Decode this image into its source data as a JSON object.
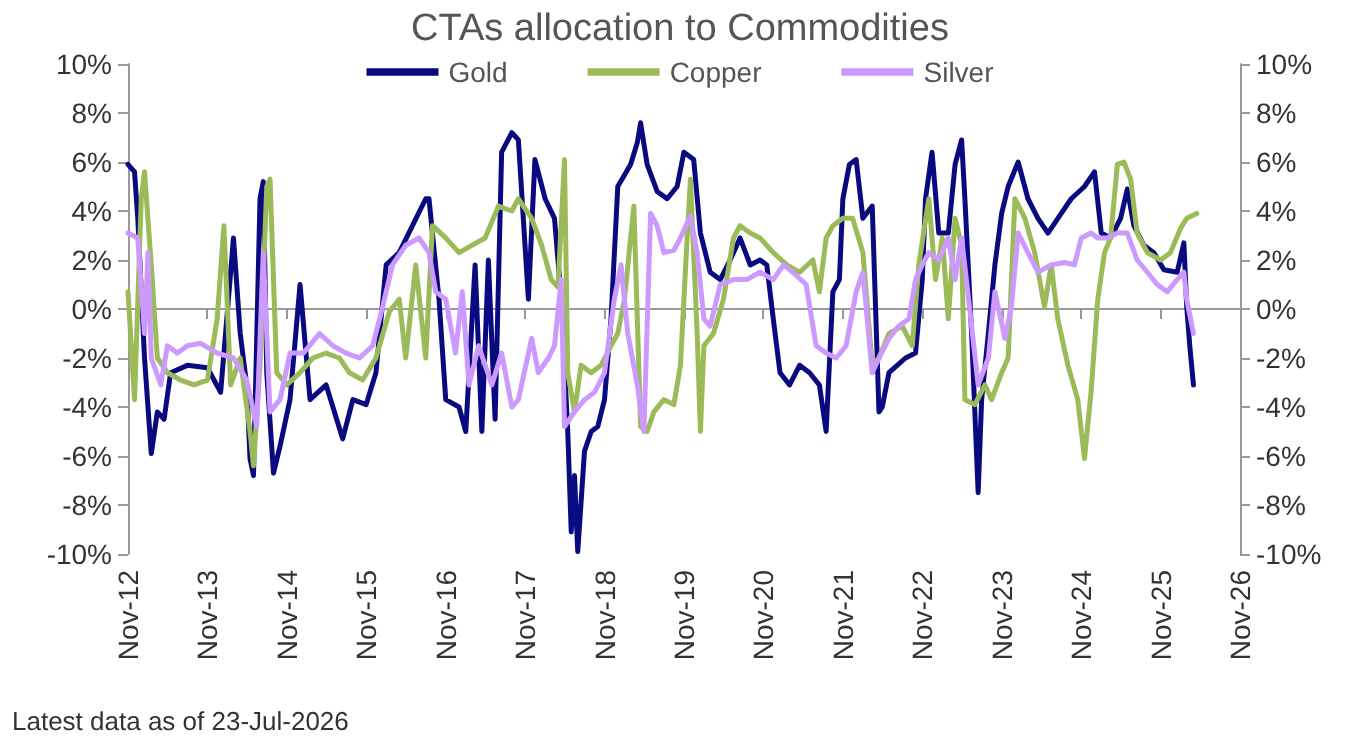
{
  "chart_data": {
    "type": "line",
    "title": "CTAs allocation to Commodities",
    "annotations": [
      "Latest data as of 23-Jul-2026"
    ],
    "xlim": [
      "2012-11",
      "2026-11"
    ],
    "xticks": [
      {
        "value": "2012-11",
        "label": "Nov-12"
      },
      {
        "value": "2013-11",
        "label": "Nov-13"
      },
      {
        "value": "2014-11",
        "label": "Nov-14"
      },
      {
        "value": "2015-11",
        "label": "Nov-15"
      },
      {
        "value": "2016-11",
        "label": "Nov-16"
      },
      {
        "value": "2017-11",
        "label": "Nov-17"
      },
      {
        "value": "2018-11",
        "label": "Nov-18"
      },
      {
        "value": "2019-11",
        "label": "Nov-19"
      },
      {
        "value": "2020-11",
        "label": "Nov-20"
      },
      {
        "value": "2021-11",
        "label": "Nov-21"
      },
      {
        "value": "2022-11",
        "label": "Nov-22"
      },
      {
        "value": "2023-11",
        "label": "Nov-23"
      },
      {
        "value": "2024-11",
        "label": "Nov-24"
      },
      {
        "value": "2025-11",
        "label": "Nov-25"
      },
      {
        "value": "2026-11",
        "label": "Nov-26"
      }
    ],
    "ylim": [
      -10,
      10
    ],
    "yticks": [
      {
        "value": -10,
        "label": "-10%"
      },
      {
        "value": -8,
        "label": "-8%"
      },
      {
        "value": -6,
        "label": "-6%"
      },
      {
        "value": -4,
        "label": "-4%"
      },
      {
        "value": -2,
        "label": "-2%"
      },
      {
        "value": 0,
        "label": "0%"
      },
      {
        "value": 2,
        "label": "2%"
      },
      {
        "value": 4,
        "label": "4%"
      },
      {
        "value": 6,
        "label": "6%"
      },
      {
        "value": 8,
        "label": "8%"
      },
      {
        "value": 10,
        "label": "10%"
      }
    ],
    "y2lim": [
      -10,
      10
    ],
    "y2ticks": [
      {
        "value": -10,
        "label": "-10%"
      },
      {
        "value": -8,
        "label": "-8%"
      },
      {
        "value": -6,
        "label": "-6%"
      },
      {
        "value": -4,
        "label": "-4%"
      },
      {
        "value": -2,
        "label": "-2%"
      },
      {
        "value": 0,
        "label": "0%"
      },
      {
        "value": 2,
        "label": "2%"
      },
      {
        "value": 4,
        "label": "4%"
      },
      {
        "value": 6,
        "label": "6%"
      },
      {
        "value": 8,
        "label": "8%"
      },
      {
        "value": 10,
        "label": "10%"
      }
    ],
    "legend": "top",
    "marker": "none",
    "line_style": "solid",
    "series": [
      {
        "name": "Gold",
        "color": "#0a0a80",
        "x": [
          "2012-11-01",
          "2012-12-01",
          "2012-12-16",
          "2013-01-16",
          "2013-02-16",
          "2013-03-16",
          "2013-04-16",
          "2013-05-16",
          "2013-08-01",
          "2013-11-01",
          "2014-01-01",
          "2014-02-01",
          "2014-03-01",
          "2014-04-01",
          "2014-05-01",
          "2014-05-16",
          "2014-06-01",
          "2014-07-01",
          "2014-07-16",
          "2014-08-01",
          "2014-09-01",
          "2014-10-01",
          "2014-11-16",
          "2015-01-01",
          "2015-02-16",
          "2015-05-01",
          "2015-07-16",
          "2015-09-01",
          "2015-11-01",
          "2015-12-16",
          "2016-02-01",
          "2016-04-01",
          "2016-06-01",
          "2016-08-01",
          "2016-08-16",
          "2016-10-01",
          "2016-11-01",
          "2017-01-01",
          "2017-02-01",
          "2017-03-16",
          "2017-04-16",
          "2017-05-16",
          "2017-06-16",
          "2017-07-16",
          "2017-09-01",
          "2017-10-01",
          "2017-11-16",
          "2017-12-16",
          "2018-02-01",
          "2018-03-16",
          "2018-04-16",
          "2018-05-16",
          "2018-06-01",
          "2018-06-16",
          "2018-07-01",
          "2018-08-01",
          "2018-09-01",
          "2018-10-01",
          "2018-11-01",
          "2018-12-01",
          "2019-01-01",
          "2019-03-01",
          "2019-04-01",
          "2019-04-16",
          "2019-05-16",
          "2019-07-01",
          "2019-08-16",
          "2019-10-01",
          "2019-11-01",
          "2019-12-16",
          "2020-01-16",
          "2020-03-01",
          "2020-04-16",
          "2020-06-01",
          "2020-07-16",
          "2020-09-01",
          "2020-10-16",
          "2020-11-16",
          "2020-12-16",
          "2021-01-16",
          "2021-03-01",
          "2021-04-16",
          "2021-06-01",
          "2021-07-16",
          "2021-08-16",
          "2021-09-16",
          "2021-10-16",
          "2021-11-01",
          "2021-12-01",
          "2022-01-01",
          "2022-02-01",
          "2022-03-16",
          "2022-04-16",
          "2022-05-01",
          "2022-06-01",
          "2022-08-16",
          "2022-10-01",
          "2022-11-01",
          "2022-11-16",
          "2022-12-16",
          "2023-01-16",
          "2023-03-01",
          "2023-04-01",
          "2023-05-01",
          "2023-05-16",
          "2023-06-16",
          "2023-07-16",
          "2023-08-01",
          "2023-09-01",
          "2023-10-01",
          "2023-11-01",
          "2023-12-01",
          "2024-01-16",
          "2024-03-01",
          "2024-04-16",
          "2024-06-01",
          "2024-08-01",
          "2024-09-16",
          "2024-11-16",
          "2025-01-01",
          "2025-02-01",
          "2025-03-16",
          "2025-05-01",
          "2025-06-01",
          "2025-07-01",
          "2025-08-16",
          "2025-10-01",
          "2025-11-16",
          "2026-01-16",
          "2026-02-16",
          "2026-03-01",
          "2026-03-16",
          "2026-04-01"
        ],
        "values": [
          5.9,
          5.6,
          3.7,
          -2.0,
          -5.9,
          -4.2,
          -4.5,
          -2.6,
          -2.3,
          -2.4,
          -3.4,
          -0.1,
          2.9,
          -1.0,
          -3.1,
          -6.1,
          -6.8,
          4.5,
          5.2,
          -2.6,
          -6.7,
          -5.6,
          -3.7,
          1.0,
          -3.7,
          -3.1,
          -5.3,
          -3.7,
          -3.9,
          -2.6,
          1.8,
          2.3,
          3.4,
          4.5,
          4.5,
          0.4,
          -3.7,
          -4.0,
          -5.0,
          1.8,
          -5.0,
          2.0,
          -4.5,
          6.4,
          7.2,
          6.9,
          0.4,
          6.1,
          4.5,
          3.7,
          0.4,
          -5.0,
          -9.1,
          -6.8,
          -9.9,
          -5.8,
          -5.0,
          -4.8,
          -3.7,
          -0.4,
          5.0,
          5.9,
          6.8,
          7.6,
          5.9,
          4.8,
          4.5,
          5.0,
          6.4,
          6.1,
          3.1,
          1.5,
          1.2,
          2.0,
          2.9,
          1.8,
          2.0,
          1.8,
          -0.4,
          -2.6,
          -3.1,
          -2.3,
          -2.6,
          -3.1,
          -5.0,
          0.7,
          1.2,
          4.5,
          5.9,
          6.1,
          3.7,
          4.2,
          -4.2,
          -4.0,
          -2.6,
          -2.0,
          -1.8,
          1.2,
          4.5,
          6.4,
          3.1,
          3.1,
          5.9,
          6.9,
          4.5,
          -1.0,
          -7.5,
          -3.7,
          -1.0,
          1.8,
          3.9,
          5.0,
          6.0,
          4.5,
          3.7,
          3.1,
          3.9,
          4.5,
          5.0,
          5.6,
          3.1,
          2.9,
          3.7,
          4.9,
          3.4,
          2.6,
          2.3,
          1.6,
          1.5,
          2.7,
          0.1,
          -1.6,
          -3.1
        ]
      },
      {
        "name": "Copper",
        "color": "#9bbb59",
        "x": [
          "2012-11-01",
          "2012-12-01",
          "2013-01-01",
          "2013-01-16",
          "2013-02-16",
          "2013-03-16",
          "2013-05-01",
          "2013-07-01",
          "2013-09-01",
          "2013-11-01",
          "2013-12-16",
          "2014-01-16",
          "2014-02-16",
          "2014-04-01",
          "2014-05-16",
          "2014-06-01",
          "2014-07-01",
          "2014-08-01",
          "2014-08-16",
          "2014-09-16",
          "2014-11-01",
          "2015-01-01",
          "2015-03-01",
          "2015-05-01",
          "2015-07-01",
          "2015-08-16",
          "2015-10-16",
          "2015-12-16",
          "2016-02-16",
          "2016-04-01",
          "2016-05-01",
          "2016-06-16",
          "2016-08-01",
          "2016-09-01",
          "2016-11-01",
          "2017-01-01",
          "2017-03-01",
          "2017-05-01",
          "2017-07-01",
          "2017-09-01",
          "2017-10-01",
          "2017-12-01",
          "2018-01-16",
          "2018-03-01",
          "2018-04-01",
          "2018-05-01",
          "2018-05-16",
          "2018-06-16",
          "2018-07-16",
          "2018-09-01",
          "2018-10-16",
          "2018-12-01",
          "2019-01-01",
          "2019-02-01",
          "2019-03-01",
          "2019-03-16",
          "2019-04-16",
          "2019-05-16",
          "2019-06-16",
          "2019-08-01",
          "2019-09-16",
          "2019-10-16",
          "2019-11-16",
          "2019-12-01",
          "2020-01-01",
          "2020-01-16",
          "2020-02-01",
          "2020-03-16",
          "2020-05-01",
          "2020-06-16",
          "2020-07-16",
          "2020-09-01",
          "2020-10-16",
          "2020-12-16",
          "2021-02-16",
          "2021-04-16",
          "2021-06-16",
          "2021-07-16",
          "2021-08-16",
          "2021-09-16",
          "2021-11-01",
          "2021-12-16",
          "2022-02-01",
          "2022-03-16",
          "2022-04-16",
          "2022-06-01",
          "2022-08-01",
          "2022-09-16",
          "2022-10-16",
          "2022-12-01",
          "2023-01-01",
          "2023-02-01",
          "2023-03-01",
          "2023-04-01",
          "2023-05-01",
          "2023-05-16",
          "2023-07-01",
          "2023-08-16",
          "2023-09-16",
          "2023-11-01",
          "2023-12-01",
          "2024-01-01",
          "2024-02-16",
          "2024-04-01",
          "2024-05-16",
          "2024-06-16",
          "2024-07-16",
          "2024-09-01",
          "2024-10-16",
          "2024-11-16",
          "2024-12-16",
          "2025-01-16",
          "2025-02-16",
          "2025-03-16",
          "2025-04-16",
          "2025-05-16",
          "2025-06-16",
          "2025-07-16",
          "2025-09-01",
          "2025-11-01",
          "2025-12-16",
          "2026-02-01",
          "2026-03-01",
          "2026-04-16"
        ],
        "values": [
          0.7,
          -3.7,
          4.5,
          5.6,
          1.8,
          -2.0,
          -2.6,
          -2.9,
          -3.1,
          -2.9,
          -0.4,
          3.4,
          -3.1,
          -2.0,
          -5.0,
          -6.4,
          -2.3,
          5.0,
          5.3,
          -2.6,
          -3.1,
          -2.6,
          -2.0,
          -1.8,
          -2.0,
          -2.6,
          -2.9,
          -2.0,
          -0.1,
          0.4,
          -2.0,
          1.8,
          -2.0,
          3.4,
          2.9,
          2.3,
          2.6,
          2.9,
          4.2,
          4.0,
          4.5,
          3.7,
          2.6,
          1.2,
          0.9,
          6.1,
          -2.6,
          -4.2,
          -2.3,
          -2.6,
          -2.3,
          -1.5,
          -1.0,
          0.4,
          2.9,
          4.2,
          -4.8,
          -5.0,
          -4.2,
          -3.7,
          -3.9,
          -2.3,
          2.9,
          5.3,
          -1.0,
          -5.0,
          -1.5,
          -1.0,
          0.4,
          2.9,
          3.4,
          3.1,
          2.9,
          2.3,
          1.8,
          1.5,
          2.0,
          0.7,
          2.9,
          3.4,
          3.7,
          3.7,
          2.3,
          -2.3,
          -2.0,
          -1.0,
          -0.7,
          -1.5,
          1.8,
          4.5,
          1.2,
          2.9,
          -0.4,
          3.7,
          2.6,
          -3.7,
          -3.9,
          -3.1,
          -3.7,
          -2.6,
          -2.0,
          4.5,
          3.7,
          2.3,
          0.1,
          1.8,
          -0.4,
          -2.3,
          -3.7,
          -6.1,
          -3.4,
          0.4,
          2.3,
          2.9,
          5.9,
          6.0,
          5.3,
          3.1,
          2.3,
          2.0,
          2.3,
          3.3,
          3.7,
          3.9
        ]
      },
      {
        "name": "Silver",
        "color": "#cc99ff",
        "x": [
          "2012-11-01",
          "2012-12-16",
          "2013-01-16",
          "2013-02-01",
          "2013-02-16",
          "2013-04-01",
          "2013-05-01",
          "2013-06-16",
          "2013-08-01",
          "2013-10-01",
          "2013-12-16",
          "2014-03-01",
          "2014-05-01",
          "2014-06-16",
          "2014-07-16",
          "2014-08-16",
          "2014-10-01",
          "2014-11-16",
          "2015-01-16",
          "2015-04-01",
          "2015-06-01",
          "2015-08-01",
          "2015-10-01",
          "2015-12-01",
          "2016-01-16",
          "2016-03-01",
          "2016-05-01",
          "2016-07-01",
          "2016-08-16",
          "2016-09-16",
          "2016-11-01",
          "2016-12-16",
          "2017-01-16",
          "2017-02-16",
          "2017-04-01",
          "2017-06-01",
          "2017-07-16",
          "2017-09-01",
          "2017-10-01",
          "2017-12-01",
          "2018-01-01",
          "2018-02-16",
          "2018-03-16",
          "2018-04-16",
          "2018-05-01",
          "2018-06-16",
          "2018-08-01",
          "2018-09-16",
          "2018-11-01",
          "2018-12-16",
          "2019-01-16",
          "2019-02-16",
          "2019-04-01",
          "2019-05-01",
          "2019-06-01",
          "2019-07-01",
          "2019-08-01",
          "2019-09-16",
          "2019-10-16",
          "2019-12-01",
          "2020-01-01",
          "2020-02-01",
          "2020-03-01",
          "2020-04-16",
          "2020-06-16",
          "2020-08-16",
          "2020-10-16",
          "2020-12-16",
          "2021-02-01",
          "2021-03-16",
          "2021-05-16",
          "2021-07-01",
          "2021-08-16",
          "2021-10-01",
          "2021-11-16",
          "2022-01-01",
          "2022-02-01",
          "2022-03-16",
          "2022-04-16",
          "2022-06-01",
          "2022-07-16",
          "2022-09-01",
          "2022-10-01",
          "2022-11-01",
          "2022-12-01",
          "2023-01-16",
          "2023-03-01",
          "2023-04-01",
          "2023-05-01",
          "2023-06-16",
          "2023-07-16",
          "2023-09-01",
          "2023-10-01",
          "2023-11-16",
          "2023-12-16",
          "2024-01-16",
          "2024-03-01",
          "2024-04-16",
          "2024-06-16",
          "2024-08-16",
          "2024-10-01",
          "2024-11-01",
          "2024-12-16",
          "2025-01-16",
          "2025-03-01",
          "2025-04-16",
          "2025-06-01",
          "2025-07-16",
          "2025-09-01",
          "2025-10-16",
          "2025-12-01",
          "2026-01-16",
          "2026-02-16",
          "2026-03-01",
          "2026-04-01"
        ],
        "values": [
          3.1,
          2.9,
          -1.0,
          2.3,
          -2.0,
          -3.1,
          -1.5,
          -1.8,
          -1.5,
          -1.4,
          -1.8,
          -2.0,
          -2.9,
          -4.8,
          2.3,
          -4.2,
          -3.7,
          -1.8,
          -1.8,
          -1.0,
          -1.5,
          -1.8,
          -2.0,
          -1.5,
          0.1,
          1.8,
          2.6,
          2.9,
          2.3,
          0.7,
          0.4,
          -1.8,
          0.7,
          -3.1,
          -1.5,
          -3.1,
          -1.8,
          -4.0,
          -3.7,
          -1.2,
          -2.6,
          -2.0,
          -1.5,
          1.2,
          -4.8,
          -4.2,
          -3.7,
          -3.4,
          -2.6,
          0.4,
          1.8,
          -1.0,
          -3.1,
          -5.0,
          3.9,
          3.4,
          2.3,
          2.4,
          2.9,
          3.8,
          2.3,
          -0.4,
          -0.7,
          1.0,
          1.2,
          1.2,
          1.5,
          1.2,
          1.8,
          1.5,
          1.0,
          -1.5,
          -1.8,
          -2.0,
          -1.5,
          0.7,
          1.5,
          -2.6,
          -2.0,
          -1.2,
          -0.7,
          -0.4,
          1.2,
          1.8,
          2.3,
          2.0,
          2.9,
          1.2,
          2.9,
          -0.7,
          -3.1,
          -2.0,
          0.7,
          -1.2,
          0.1,
          3.1,
          2.3,
          1.5,
          1.8,
          1.9,
          1.8,
          2.9,
          3.1,
          2.9,
          2.9,
          3.1,
          3.1,
          2.0,
          1.5,
          1.0,
          0.7,
          1.2,
          1.5,
          0.4,
          -1.0
        ]
      }
    ]
  }
}
